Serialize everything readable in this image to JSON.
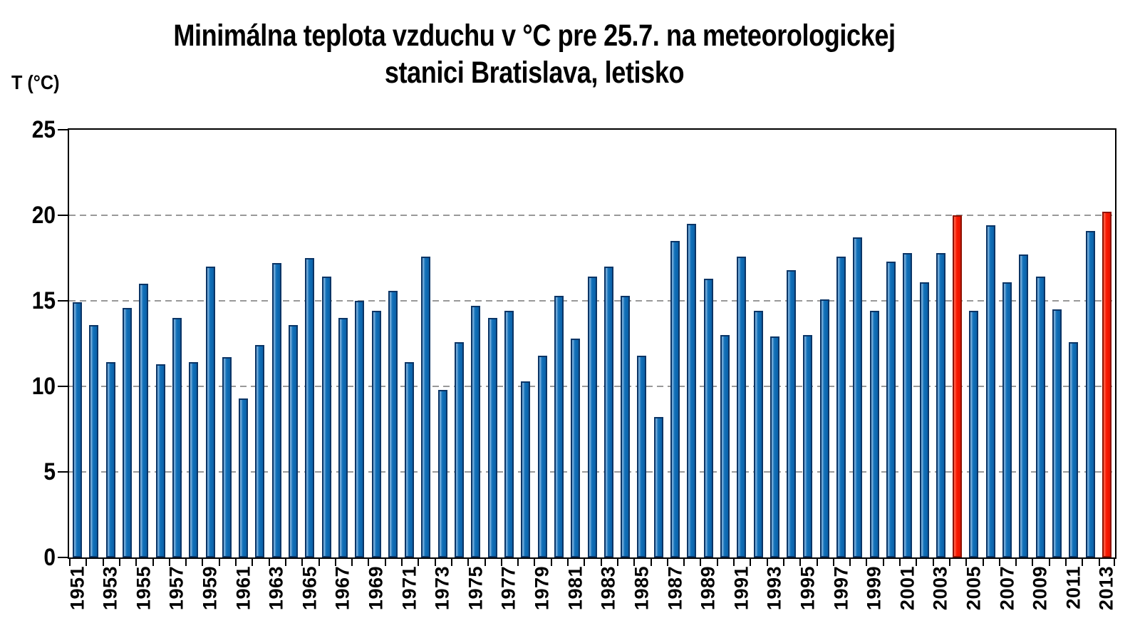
{
  "title": {
    "line1": "Minimálna teplota vzduchu v °C pre 25.7. na meteorologickej",
    "line2": "stanici Bratislava, letisko"
  },
  "chart_data": {
    "type": "bar",
    "title": "Minimálna teplota vzduchu v °C pre 25.7. na meteorologickej stanici Bratislava, letisko",
    "xlabel": "",
    "ylabel": "T (°C)",
    "ylim": [
      0,
      25
    ],
    "yticks": [
      0,
      5,
      10,
      15,
      20,
      25
    ],
    "grid": "horizontal dashed gridlines at 5, 10, 15, 20; solid black plot border",
    "legend": "none",
    "x_label_interval": 2,
    "x_label_rotation_deg": 90,
    "categories": [
      1951,
      1952,
      1953,
      1954,
      1955,
      1956,
      1957,
      1958,
      1959,
      1960,
      1961,
      1962,
      1963,
      1964,
      1965,
      1966,
      1967,
      1968,
      1969,
      1970,
      1971,
      1972,
      1973,
      1974,
      1975,
      1976,
      1977,
      1978,
      1979,
      1980,
      1981,
      1982,
      1983,
      1984,
      1985,
      1986,
      1987,
      1988,
      1989,
      1990,
      1991,
      1992,
      1993,
      1994,
      1995,
      1996,
      1997,
      1998,
      1999,
      2000,
      2001,
      2002,
      2003,
      2004,
      2005,
      2006,
      2007,
      2008,
      2009,
      2010,
      2011,
      2012,
      2013
    ],
    "values": [
      14.9,
      13.6,
      11.4,
      14.6,
      16.0,
      11.3,
      14.0,
      11.4,
      17.0,
      11.7,
      9.3,
      12.4,
      17.2,
      13.6,
      17.5,
      16.4,
      14.0,
      15.0,
      14.4,
      15.6,
      11.4,
      17.6,
      9.8,
      12.6,
      14.7,
      14.0,
      14.4,
      10.3,
      11.8,
      15.3,
      12.8,
      16.4,
      17.0,
      15.3,
      11.8,
      8.2,
      18.5,
      19.5,
      16.3,
      13.0,
      17.6,
      14.4,
      12.9,
      16.8,
      13.0,
      15.1,
      17.6,
      18.7,
      14.4,
      17.3,
      17.8,
      16.1,
      17.8,
      20.0,
      14.4,
      19.4,
      16.1,
      17.7,
      16.4,
      14.5,
      12.6,
      19.1,
      20.2
    ],
    "highlight_years": [
      2004,
      2013
    ],
    "colors": {
      "bar_border": "#0B3566",
      "bar_gradient": [
        "#6FA8D8",
        "#1171BA",
        "#0B61A8"
      ],
      "highlight_border": "#8E1200",
      "highlight_gradient": [
        "#FF5A40",
        "#FB1A02",
        "#E51400"
      ],
      "gridline": "#999999",
      "axis": "#000000",
      "background": "#FFFFFF"
    }
  }
}
